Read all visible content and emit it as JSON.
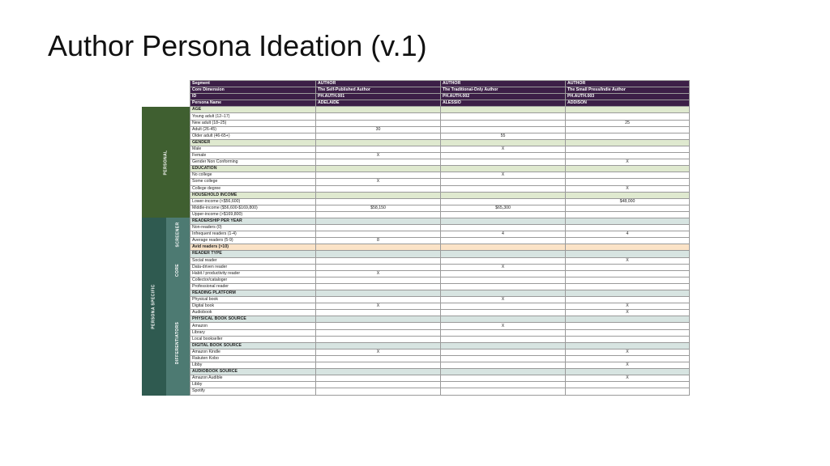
{
  "title": "Author Persona Ideation (v.1)",
  "groups": {
    "personal": "PERSONAL",
    "persona_specific": "PERSONA SPECIFIC",
    "screener": "SCREENER",
    "core": "CORE",
    "differentiators": "DIFFERENTIATORS"
  },
  "colors": {
    "header": "#3c1f47",
    "personal_band": "#3f5f30",
    "persona_specific_band": "#2f5a50",
    "sub_band": "#4d7a72",
    "section_green": "#dfe9cf",
    "section_blue": "#d7e4e1",
    "avid_highlight": "#fbe3c7"
  },
  "table": {
    "header_rows": [
      {
        "label": "Segment",
        "values": [
          "AUTHOR",
          "AUTHOR",
          "AUTHOR"
        ]
      },
      {
        "label": "Core Dimension",
        "values": [
          "The Self-Published Author",
          "The Traditional-Only Author",
          "The Small Press/Indie Author"
        ]
      },
      {
        "label": "ID",
        "values": [
          "PH.AUTH.001",
          "PH.AUTH.002",
          "PH.AUTH.003"
        ]
      },
      {
        "label": "Persona Name",
        "values": [
          "ADELAIDE",
          "ALESSIO",
          "ADDISON"
        ]
      }
    ],
    "rows": [
      {
        "type": "section",
        "color": "green",
        "label": "AGE",
        "values": [
          "",
          "",
          ""
        ]
      },
      {
        "label": "Young adult (12–17)",
        "values": [
          "",
          "",
          ""
        ]
      },
      {
        "label": "New adult (18–25)",
        "values": [
          "",
          "",
          "25"
        ]
      },
      {
        "label": "Adult (26-45)",
        "values": [
          "30",
          "",
          ""
        ]
      },
      {
        "label": "Older adult (46-65+)",
        "values": [
          "",
          "55",
          ""
        ]
      },
      {
        "type": "section",
        "color": "green",
        "label": "GENDER",
        "values": [
          "",
          "",
          ""
        ]
      },
      {
        "label": "Male",
        "values": [
          "",
          "X",
          ""
        ]
      },
      {
        "label": "Female",
        "values": [
          "X",
          "",
          ""
        ]
      },
      {
        "label": "Gender Non Conforming",
        "values": [
          "",
          "",
          "X"
        ]
      },
      {
        "type": "section",
        "color": "green",
        "label": "EDUCATION",
        "values": [
          "",
          "",
          ""
        ]
      },
      {
        "label": "No college",
        "values": [
          "",
          "X",
          ""
        ]
      },
      {
        "label": "Some college",
        "values": [
          "X",
          "",
          ""
        ]
      },
      {
        "label": "College degree",
        "values": [
          "",
          "",
          "X"
        ]
      },
      {
        "type": "section",
        "color": "green",
        "label": "HOUSEHOLD INCOME",
        "values": [
          "",
          "",
          ""
        ]
      },
      {
        "label": "Lower-income (<$56,600)",
        "values": [
          "",
          "",
          "$48,000"
        ]
      },
      {
        "label": "Middle-income ($56,600-$169,800)",
        "values": [
          "$58,150",
          "$65,300",
          ""
        ]
      },
      {
        "label": "Upper-income (>$169,800)",
        "values": [
          "",
          "",
          ""
        ]
      },
      {
        "type": "section",
        "color": "blue",
        "label": "READERSHIP PER YEAR",
        "values": [
          "",
          "",
          ""
        ]
      },
      {
        "label": "Non-readers (0)",
        "values": [
          "",
          "",
          ""
        ]
      },
      {
        "label": "Infrequent readers (1-4)",
        "values": [
          "",
          "4",
          "4"
        ]
      },
      {
        "label": "Average readers (5-9)",
        "values": [
          "8",
          "",
          ""
        ]
      },
      {
        "type": "highlight",
        "label": "Avid readers (>10)",
        "values": [
          "",
          "",
          ""
        ]
      },
      {
        "type": "section",
        "color": "blue",
        "label": "READER TYPE",
        "values": [
          "",
          "",
          ""
        ]
      },
      {
        "label": "Social reader",
        "values": [
          "",
          "",
          "X"
        ]
      },
      {
        "label": "Data-driven reader",
        "values": [
          "",
          "X",
          ""
        ]
      },
      {
        "label": "Habit / productivity reader",
        "values": [
          "X",
          "",
          ""
        ]
      },
      {
        "label": "Collector/cataloger",
        "values": [
          "",
          "",
          ""
        ]
      },
      {
        "label": "Professional reader",
        "values": [
          "",
          "",
          ""
        ]
      },
      {
        "type": "section",
        "color": "blue",
        "label": "READING PLATFORM",
        "values": [
          "",
          "",
          ""
        ]
      },
      {
        "label": "Physical book",
        "values": [
          "",
          "X",
          ""
        ]
      },
      {
        "label": "Digital book",
        "values": [
          "X",
          "",
          "X"
        ]
      },
      {
        "label": "Audiobook",
        "values": [
          "",
          "",
          "X"
        ]
      },
      {
        "type": "section",
        "color": "blue",
        "label": "PHYSICAL BOOK SOURCE",
        "values": [
          "",
          "",
          ""
        ]
      },
      {
        "label": "Amazon",
        "values": [
          "",
          "X",
          ""
        ]
      },
      {
        "label": "Library",
        "values": [
          "",
          "",
          ""
        ]
      },
      {
        "label": "Local bookseller",
        "values": [
          "",
          "",
          ""
        ]
      },
      {
        "type": "section",
        "color": "blue",
        "label": "DIGITAL BOOK SOURCE",
        "values": [
          "",
          "",
          ""
        ]
      },
      {
        "label": "Amazon Kindle",
        "values": [
          "X",
          "",
          "X"
        ]
      },
      {
        "label": "Rakuten Kobo",
        "values": [
          "",
          "",
          ""
        ]
      },
      {
        "label": "Libby",
        "values": [
          "",
          "",
          "X"
        ]
      },
      {
        "type": "section",
        "color": "blue",
        "label": "AUDIOBOOK SOURCE",
        "values": [
          "",
          "",
          ""
        ]
      },
      {
        "label": "Amazon Audible",
        "values": [
          "",
          "",
          "X"
        ]
      },
      {
        "label": "Libby",
        "values": [
          "",
          "",
          ""
        ]
      },
      {
        "label": "Spotify",
        "values": [
          "",
          "",
          ""
        ]
      }
    ]
  }
}
